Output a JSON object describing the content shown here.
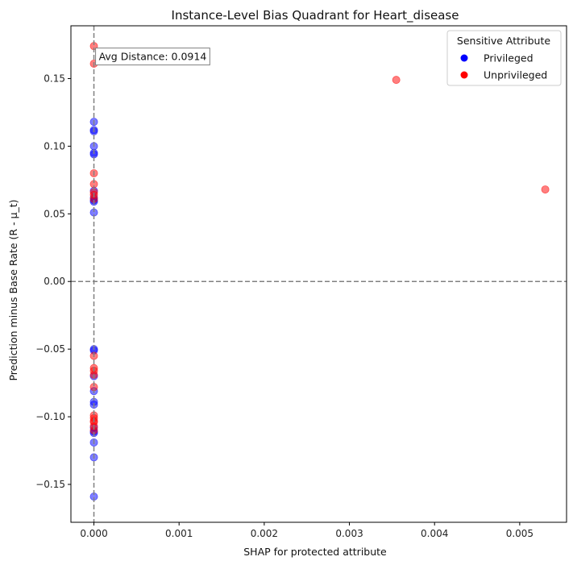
{
  "chart_data": {
    "type": "scatter",
    "title": "Instance-Level Bias Quadrant for Heart_disease",
    "xlabel": "SHAP for protected attribute",
    "ylabel": "Prediction minus Base Rate (R - μ_t)",
    "xlim": [
      -0.00027,
      0.00555
    ],
    "ylim": [
      -0.178,
      0.189
    ],
    "xticks": [
      0.0,
      0.001,
      0.002,
      0.003,
      0.004,
      0.005
    ],
    "xtick_labels": [
      "0.000",
      "0.001",
      "0.002",
      "0.003",
      "0.004",
      "0.005"
    ],
    "yticks": [
      -0.15,
      -0.1,
      -0.05,
      0.0,
      0.05,
      0.1,
      0.15
    ],
    "ytick_labels": [
      "−0.15",
      "−0.10",
      "−0.05",
      "0.00",
      "0.05",
      "0.10",
      "0.15"
    ],
    "reference_lines": {
      "x": 0.0,
      "y": 0.0,
      "color": "#808080",
      "style": "dashed"
    },
    "annotation": {
      "text": "Avg Distance: 0.0914",
      "x": 1e-05,
      "y": 0.166
    },
    "legend": {
      "title": "Sensitive Attribute",
      "position": "top-right",
      "entries": [
        {
          "label": "Privileged",
          "color": "#0000ff"
        },
        {
          "label": "Unprivileged",
          "color": "#ff0000"
        }
      ]
    },
    "series": [
      {
        "name": "Privileged",
        "color": "#0000ff",
        "x": [
          0,
          0,
          0,
          0,
          0,
          0,
          0,
          0,
          0,
          0,
          0,
          0,
          0,
          0,
          0,
          0,
          0,
          0,
          0,
          0,
          0,
          0,
          0
        ],
        "y": [
          0.118,
          0.112,
          0.111,
          0.1,
          0.095,
          0.094,
          0.067,
          0.062,
          0.06,
          0.059,
          0.051,
          -0.05,
          -0.051,
          -0.07,
          -0.081,
          -0.089,
          -0.091,
          -0.108,
          -0.111,
          -0.112,
          -0.119,
          -0.13,
          -0.159
        ]
      },
      {
        "name": "Unprivileged",
        "color": "#ff0000",
        "x": [
          0,
          0,
          0,
          0,
          0,
          0,
          0,
          0,
          0,
          0,
          0,
          0,
          0,
          0,
          0,
          0,
          0,
          0,
          0.00355,
          0.0053
        ],
        "y": [
          0.174,
          0.161,
          0.08,
          0.072,
          0.066,
          0.064,
          0.061,
          -0.055,
          -0.064,
          -0.066,
          -0.069,
          -0.078,
          -0.099,
          -0.101,
          -0.103,
          -0.104,
          -0.107,
          -0.11,
          0.149,
          0.068
        ]
      }
    ]
  }
}
